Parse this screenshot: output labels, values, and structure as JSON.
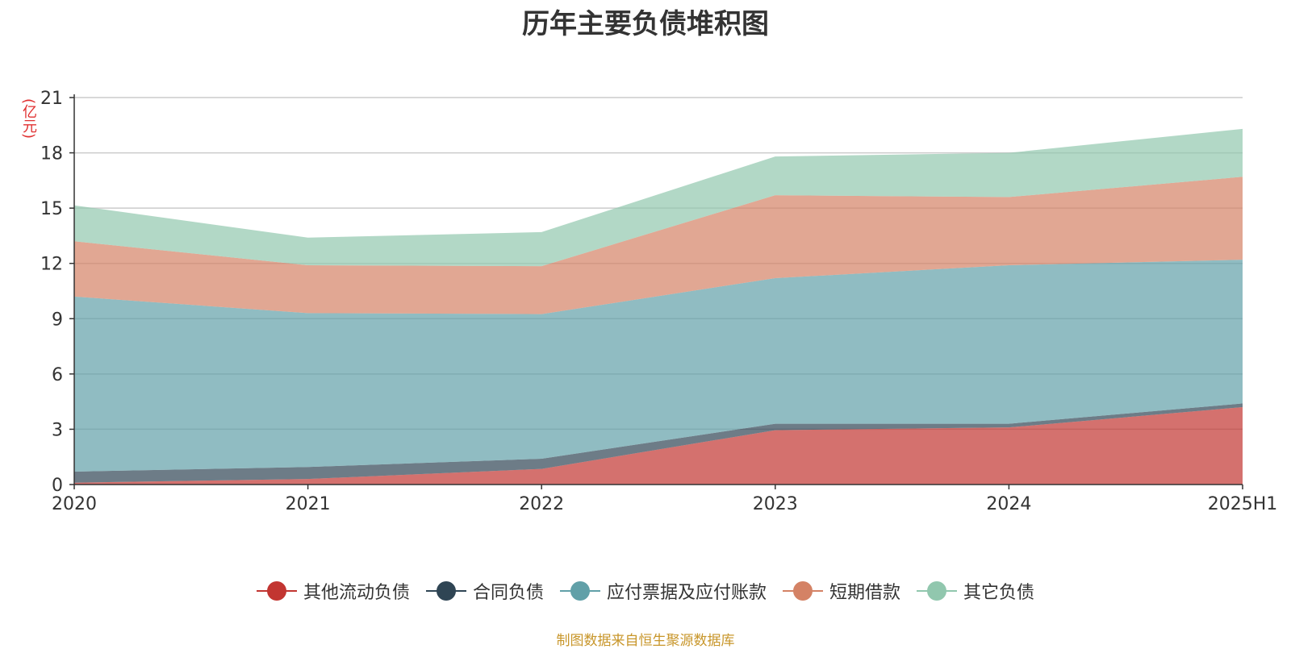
{
  "title": "历年主要负债堆积图",
  "unit_label": "(亿元)",
  "source": "制图数据来自恒生聚源数据库",
  "chart_data": {
    "type": "area",
    "stacked": true,
    "title": "历年主要负债堆积图",
    "ylabel": "(亿元)",
    "categories": [
      "2020",
      "2021",
      "2022",
      "2023",
      "2024",
      "2025H1"
    ],
    "ylim": [
      0,
      21
    ],
    "yticks": [
      0,
      3,
      6,
      9,
      12,
      15,
      18,
      21
    ],
    "grid": true,
    "legend_position": "bottom",
    "series": [
      {
        "name": "其他流动负债",
        "color": "#c23531",
        "values": [
          0.1,
          0.3,
          0.85,
          2.95,
          3.1,
          4.2
        ]
      },
      {
        "name": "合同负债",
        "color": "#2f4554",
        "values": [
          0.6,
          0.65,
          0.55,
          0.35,
          0.2,
          0.2
        ]
      },
      {
        "name": "应付票据及应付账款",
        "color": "#61a0a8",
        "values": [
          9.5,
          8.35,
          7.85,
          7.9,
          8.6,
          7.8
        ]
      },
      {
        "name": "短期借款",
        "color": "#d48265",
        "values": [
          3.0,
          2.6,
          2.6,
          4.5,
          3.7,
          4.5
        ]
      },
      {
        "name": "其它负债",
        "color": "#91c7ae",
        "values": [
          1.95,
          1.5,
          1.85,
          2.1,
          2.4,
          2.6
        ]
      }
    ]
  }
}
